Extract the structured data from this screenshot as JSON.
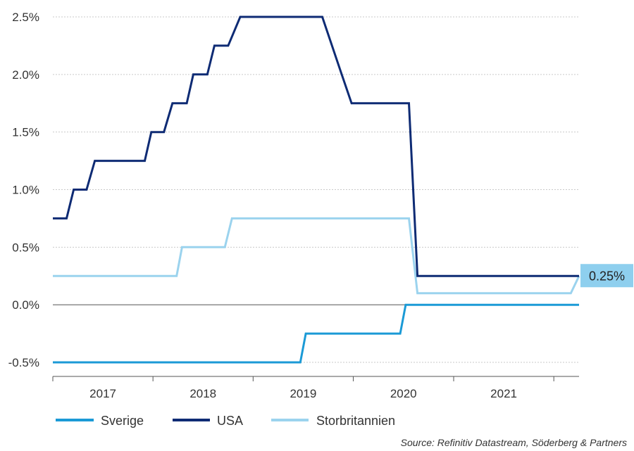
{
  "chart_data": {
    "type": "line",
    "y_unit": "%",
    "ylim": [
      -0.5,
      2.5
    ],
    "xlim": [
      "2016-07-01",
      "2021-10-01"
    ],
    "y_ticks": [
      {
        "value": -0.5,
        "label": "-0.5%"
      },
      {
        "value": 0.0,
        "label": "0.0%"
      },
      {
        "value": 0.5,
        "label": "0.5%"
      },
      {
        "value": 1.0,
        "label": "1.0%"
      },
      {
        "value": 1.5,
        "label": "1.5%"
      },
      {
        "value": 2.0,
        "label": "2.0%"
      },
      {
        "value": 2.5,
        "label": "2.5%"
      }
    ],
    "x_ticks": [
      {
        "label": "2017",
        "date": "2017-07-01"
      },
      {
        "label": "2018",
        "date": "2018-07-01"
      },
      {
        "label": "2019",
        "date": "2019-07-01"
      },
      {
        "label": "2020",
        "date": "2020-07-01"
      },
      {
        "label": "2021",
        "date": "2021-07-01"
      }
    ],
    "grid": "horizontal-dotted",
    "legend_position": "bottom",
    "series": [
      {
        "name": "Sverige",
        "color": "#1b9ad6",
        "points": [
          [
            "2016-07-01",
            -0.5
          ],
          [
            "2018-12-20",
            -0.5
          ],
          [
            "2019-01-09",
            -0.25
          ],
          [
            "2019-12-19",
            -0.25
          ],
          [
            "2020-01-08",
            0.0
          ],
          [
            "2021-10-01",
            0.0
          ]
        ]
      },
      {
        "name": "USA",
        "color": "#0e2b74",
        "points": [
          [
            "2016-07-01",
            0.75
          ],
          [
            "2016-08-20",
            0.75
          ],
          [
            "2016-09-15",
            1.0
          ],
          [
            "2016-11-01",
            1.0
          ],
          [
            "2016-12-01",
            1.25
          ],
          [
            "2017-06-01",
            1.25
          ],
          [
            "2017-06-25",
            1.5
          ],
          [
            "2017-08-10",
            1.5
          ],
          [
            "2017-09-10",
            1.75
          ],
          [
            "2017-11-01",
            1.75
          ],
          [
            "2017-11-25",
            2.0
          ],
          [
            "2018-01-15",
            2.0
          ],
          [
            "2018-02-10",
            2.25
          ],
          [
            "2018-04-01",
            2.25
          ],
          [
            "2018-05-15",
            2.5
          ],
          [
            "2019-03-10",
            2.5
          ],
          [
            "2019-05-20",
            2.0
          ],
          [
            "2019-06-25",
            1.75
          ],
          [
            "2020-01-20",
            1.75
          ],
          [
            "2020-02-20",
            0.25
          ],
          [
            "2021-10-01",
            0.25
          ]
        ]
      },
      {
        "name": "Storbritannien",
        "color": "#9bd3ee",
        "points": [
          [
            "2016-07-01",
            0.25
          ],
          [
            "2017-09-25",
            0.25
          ],
          [
            "2017-10-15",
            0.5
          ],
          [
            "2018-03-20",
            0.5
          ],
          [
            "2018-04-15",
            0.75
          ],
          [
            "2020-01-20",
            0.75
          ],
          [
            "2020-02-20",
            0.1
          ],
          [
            "2021-09-01",
            0.1
          ],
          [
            "2021-10-01",
            0.25
          ]
        ]
      }
    ],
    "annotations": [
      {
        "text": "0.25%",
        "date": "2021-10-01",
        "value": 0.25,
        "color": "#8ecfee"
      }
    ]
  },
  "source": "Source: Refinitiv Datastream, Söderberg & Partners"
}
